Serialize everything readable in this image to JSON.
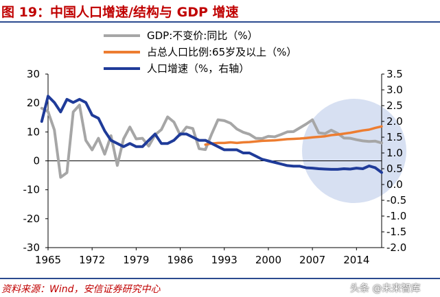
{
  "title": "图 19：中国人口增速/结构与 GDP 增速",
  "source": "资料来源：Wind，安信证券研究中心",
  "watermark": "头条 @未来智库",
  "colors": {
    "gdp": "#a6a6a6",
    "aging": "#ed7d31",
    "pop": "#1f3b99",
    "highlight": "#c9d5ee",
    "title": "#c00000",
    "rule": "#2a4a8f"
  },
  "chart_data": {
    "type": "line",
    "legend": [
      "GDP:不变价:同比（%）",
      "占总人口比例:65岁及以上（%）",
      "人口增速（%，右轴）"
    ],
    "legend_position": "top",
    "x_ticks": [
      "1965",
      "1972",
      "1979",
      "1986",
      "1993",
      "2000",
      "2007",
      "2014"
    ],
    "y_left_ticks": [
      "30",
      "20",
      "10",
      "0",
      "-10",
      "-20",
      "-30"
    ],
    "y_right_ticks": [
      "3.5",
      "3.0",
      "2.5",
      "2.0",
      "1.5",
      "1.0",
      "0.5",
      "0.0",
      "-0.5",
      "-1.0",
      "-1.5",
      "-2.0"
    ],
    "xlim": [
      1965,
      2018
    ],
    "ylim_left": [
      -30,
      30
    ],
    "ylim_right": [
      -2.0,
      3.5
    ],
    "grid": false,
    "series": [
      {
        "name": "GDP:不变价:同比（%）",
        "axis": "left",
        "color": "#a6a6a6",
        "x": [
          1964,
          1965,
          1966,
          1967,
          1968,
          1969,
          1970,
          1971,
          1972,
          1973,
          1974,
          1975,
          1976,
          1977,
          1978,
          1979,
          1980,
          1981,
          1982,
          1983,
          1984,
          1985,
          1986,
          1987,
          1988,
          1989,
          1990,
          1991,
          1992,
          1993,
          1994,
          1995,
          1996,
          1997,
          1998,
          1999,
          2000,
          2001,
          2002,
          2003,
          2004,
          2005,
          2006,
          2007,
          2008,
          2009,
          2010,
          2011,
          2012,
          2013,
          2014,
          2015,
          2016,
          2017,
          2018
        ],
        "y": [
          18.2,
          17.0,
          10.7,
          -5.7,
          -4.1,
          16.9,
          19.3,
          7.1,
          3.8,
          7.8,
          2.3,
          8.7,
          -1.6,
          7.6,
          11.7,
          7.6,
          7.8,
          5.1,
          9.0,
          10.8,
          15.2,
          13.4,
          8.9,
          11.7,
          11.2,
          4.2,
          3.9,
          9.3,
          14.2,
          13.9,
          13.0,
          11.0,
          9.9,
          9.2,
          7.8,
          7.7,
          8.5,
          8.3,
          9.1,
          10.0,
          10.1,
          11.4,
          12.7,
          14.2,
          9.7,
          9.4,
          10.6,
          9.5,
          7.9,
          7.8,
          7.3,
          6.9,
          6.7,
          6.8,
          6.2
        ]
      },
      {
        "name": "占总人口比例:65岁及以上（%）",
        "axis": "left",
        "color": "#ed7d31",
        "x": [
          1990,
          1991,
          1992,
          1993,
          1994,
          1995,
          1996,
          1997,
          1998,
          1999,
          2000,
          2001,
          2002,
          2003,
          2004,
          2005,
          2006,
          2007,
          2008,
          2009,
          2010,
          2011,
          2012,
          2013,
          2014,
          2015,
          2016,
          2017,
          2018
        ],
        "y": [
          5.6,
          6.0,
          6.2,
          6.2,
          6.4,
          6.2,
          6.4,
          6.5,
          6.7,
          6.9,
          7.0,
          7.1,
          7.3,
          7.5,
          7.6,
          7.7,
          7.9,
          8.1,
          8.3,
          8.5,
          8.9,
          9.1,
          9.4,
          9.7,
          10.1,
          10.5,
          10.8,
          11.4,
          11.9
        ]
      },
      {
        "name": "人口增速（%，右轴）",
        "axis": "right",
        "color": "#1f3b99",
        "x": [
          1964,
          1965,
          1966,
          1967,
          1968,
          1969,
          1970,
          1971,
          1972,
          1973,
          1974,
          1975,
          1976,
          1977,
          1978,
          1979,
          1980,
          1981,
          1982,
          1983,
          1984,
          1985,
          1986,
          1987,
          1988,
          1989,
          1990,
          1991,
          1992,
          1993,
          1994,
          1995,
          1996,
          1997,
          1998,
          1999,
          2000,
          2001,
          2002,
          2003,
          2004,
          2005,
          2006,
          2007,
          2008,
          2009,
          2010,
          2011,
          2012,
          2013,
          2014,
          2015,
          2016,
          2017,
          2018
        ],
        "y": [
          2.0,
          2.8,
          2.6,
          2.3,
          2.7,
          2.6,
          2.7,
          2.6,
          2.2,
          2.1,
          1.7,
          1.4,
          1.3,
          1.2,
          1.3,
          1.2,
          1.2,
          1.4,
          1.6,
          1.3,
          1.3,
          1.4,
          1.6,
          1.6,
          1.5,
          1.4,
          1.4,
          1.3,
          1.2,
          1.1,
          1.1,
          1.1,
          1.0,
          1.0,
          0.9,
          0.8,
          0.75,
          0.7,
          0.65,
          0.6,
          0.58,
          0.58,
          0.53,
          0.52,
          0.5,
          0.49,
          0.48,
          0.48,
          0.5,
          0.49,
          0.52,
          0.5,
          0.59,
          0.53,
          0.38
        ]
      }
    ]
  }
}
